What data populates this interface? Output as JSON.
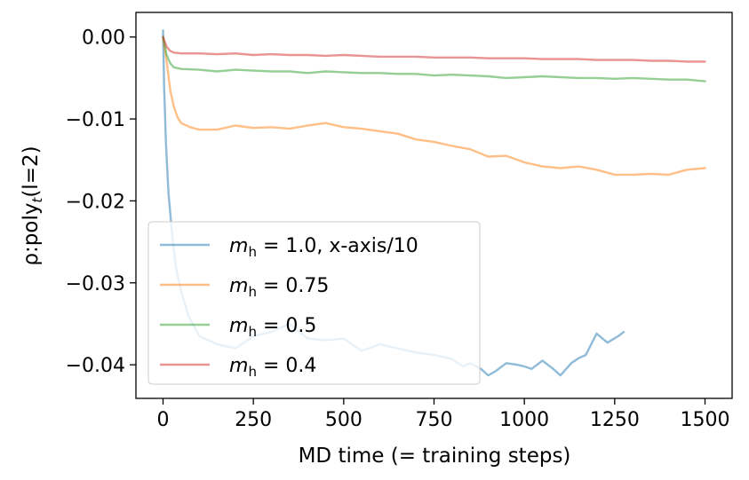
{
  "chart_data": {
    "type": "line",
    "title": "",
    "xlabel": "MD time (= training steps)",
    "ylabel_main": "ρ:poly",
    "ylabel_sub": "t",
    "ylabel_tail": "(l=2)",
    "xlim": [
      -75,
      1575
    ],
    "ylim": [
      -0.0441,
      0.003
    ],
    "xticks": [
      0,
      250,
      500,
      750,
      1000,
      1250,
      1500
    ],
    "xtick_labels": [
      "0",
      "250",
      "500",
      "750",
      "1000",
      "1250",
      "1500"
    ],
    "yticks": [
      0.0,
      -0.01,
      -0.02,
      -0.03,
      -0.04
    ],
    "ytick_labels": [
      "0.00",
      "−0.01",
      "−0.02",
      "−0.03",
      "−0.04"
    ],
    "grid": false,
    "legend_placement": "lower-left",
    "series": [
      {
        "name": "m_h = 1.0, x-axis/10",
        "legend_symbol": "m",
        "legend_sub": "h",
        "legend_rest": " = 1.0, x-axis/10",
        "color": "#1f77b4",
        "alpha": 0.5,
        "x": [
          0,
          3,
          8,
          15,
          25,
          35,
          50,
          70,
          100,
          150,
          200,
          250,
          300,
          350,
          400,
          450,
          500,
          550,
          600,
          650,
          700,
          750,
          800,
          830,
          850,
          880,
          900,
          920,
          950,
          980,
          1000,
          1020,
          1050,
          1080,
          1100,
          1130,
          1150,
          1170,
          1200,
          1230,
          1260,
          1275
        ],
        "y": [
          0.0008,
          -0.006,
          -0.013,
          -0.019,
          -0.024,
          -0.028,
          -0.031,
          -0.034,
          -0.0365,
          -0.0375,
          -0.038,
          -0.0365,
          -0.036,
          -0.035,
          -0.0368,
          -0.037,
          -0.0368,
          -0.0383,
          -0.0375,
          -0.038,
          -0.0385,
          -0.0388,
          -0.0393,
          -0.0402,
          -0.0398,
          -0.0405,
          -0.0413,
          -0.0408,
          -0.0398,
          -0.04,
          -0.0402,
          -0.0405,
          -0.0395,
          -0.0405,
          -0.0413,
          -0.0398,
          -0.0392,
          -0.0388,
          -0.0362,
          -0.0373,
          -0.0365,
          -0.036
        ]
      },
      {
        "name": "m_h = 0.75",
        "legend_symbol": "m",
        "legend_sub": "h",
        "legend_rest": " = 0.75",
        "color": "#ff7f0e",
        "alpha": 0.5,
        "x": [
          0,
          10,
          20,
          30,
          40,
          50,
          75,
          100,
          150,
          200,
          250,
          300,
          350,
          400,
          450,
          500,
          550,
          600,
          650,
          700,
          750,
          800,
          850,
          900,
          950,
          1000,
          1050,
          1100,
          1150,
          1200,
          1250,
          1300,
          1350,
          1400,
          1450,
          1500
        ],
        "y": [
          0.0,
          -0.003,
          -0.0065,
          -0.0085,
          -0.0098,
          -0.0105,
          -0.011,
          -0.0113,
          -0.0113,
          -0.0108,
          -0.0111,
          -0.011,
          -0.0112,
          -0.0108,
          -0.0105,
          -0.011,
          -0.0112,
          -0.0115,
          -0.0118,
          -0.0125,
          -0.0128,
          -0.0133,
          -0.0137,
          -0.0146,
          -0.0145,
          -0.0153,
          -0.0158,
          -0.016,
          -0.0158,
          -0.0162,
          -0.0168,
          -0.0168,
          -0.0167,
          -0.0168,
          -0.0162,
          -0.016
        ]
      },
      {
        "name": "m_h = 0.5",
        "legend_symbol": "m",
        "legend_sub": "h",
        "legend_rest": " = 0.5",
        "color": "#2ca02c",
        "alpha": 0.5,
        "x": [
          0,
          10,
          20,
          30,
          50,
          100,
          150,
          200,
          250,
          300,
          350,
          400,
          450,
          500,
          550,
          600,
          650,
          700,
          750,
          800,
          850,
          900,
          950,
          1000,
          1050,
          1100,
          1150,
          1200,
          1250,
          1300,
          1350,
          1400,
          1450,
          1500
        ],
        "y": [
          0.0,
          -0.0022,
          -0.0032,
          -0.0037,
          -0.0039,
          -0.004,
          -0.0042,
          -0.004,
          -0.0041,
          -0.0042,
          -0.0042,
          -0.0044,
          -0.0042,
          -0.0043,
          -0.0044,
          -0.0044,
          -0.0045,
          -0.0045,
          -0.0047,
          -0.0046,
          -0.0047,
          -0.0048,
          -0.005,
          -0.0049,
          -0.0048,
          -0.0049,
          -0.005,
          -0.005,
          -0.0051,
          -0.005,
          -0.0051,
          -0.0052,
          -0.0052,
          -0.0054
        ]
      },
      {
        "name": "m_h = 0.4",
        "legend_symbol": "m",
        "legend_sub": "h",
        "legend_rest": " = 0.4",
        "color": "#d62728",
        "alpha": 0.5,
        "x": [
          0,
          10,
          20,
          30,
          50,
          100,
          150,
          200,
          250,
          300,
          350,
          400,
          450,
          500,
          550,
          600,
          650,
          700,
          750,
          800,
          850,
          900,
          950,
          1000,
          1050,
          1100,
          1150,
          1200,
          1250,
          1300,
          1350,
          1400,
          1450,
          1500
        ],
        "y": [
          0.0,
          -0.0012,
          -0.0017,
          -0.0019,
          -0.002,
          -0.002,
          -0.0021,
          -0.002,
          -0.0022,
          -0.0021,
          -0.0022,
          -0.0022,
          -0.0023,
          -0.0022,
          -0.0023,
          -0.0024,
          -0.0024,
          -0.0024,
          -0.0025,
          -0.0025,
          -0.0025,
          -0.0026,
          -0.0026,
          -0.0026,
          -0.0027,
          -0.0027,
          -0.0027,
          -0.0028,
          -0.0028,
          -0.0028,
          -0.0029,
          -0.0029,
          -0.003,
          -0.003
        ]
      }
    ]
  }
}
